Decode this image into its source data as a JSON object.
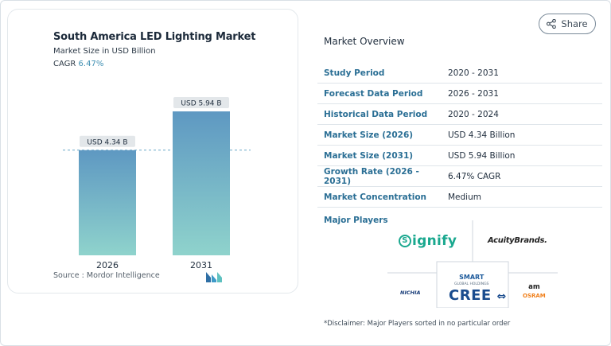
{
  "chart": {
    "title": "South America LED Lighting Market",
    "subtitle": "Market Size in USD Billion",
    "cagr_label": "CAGR",
    "cagr_value": "6.47%",
    "source": "Source : Mordor Intelligence"
  },
  "chart_data": {
    "type": "bar",
    "title": "South America LED Lighting Market",
    "subtitle": "Market Size in USD Billion",
    "categories": [
      "2026",
      "2031"
    ],
    "values": [
      4.34,
      5.94
    ],
    "data_labels": [
      "USD 4.34 B",
      "USD 5.94 B"
    ],
    "ylabel": "",
    "xlabel": "",
    "ylim": [
      0,
      6.5
    ],
    "grid": false,
    "colors": {
      "bar_top": "#5e98c2",
      "bar_bottom": "#8fd3cc",
      "label_bg": "#e3e7ea",
      "reference_line": "#6aa8c8"
    }
  },
  "header": {
    "share_label": "Share"
  },
  "overview": {
    "title": "Market Overview",
    "rows": [
      {
        "key": "Study Period",
        "value": "2020 - 2031"
      },
      {
        "key": "Forecast Data Period",
        "value": "2026 - 2031"
      },
      {
        "key": "Historical Data Period",
        "value": "2020 - 2024"
      },
      {
        "key": "Market Size (2026)",
        "value": "USD 4.34 Billion"
      },
      {
        "key": "Market Size (2031)",
        "value": "USD 5.94 Billion"
      },
      {
        "key": "Growth Rate (2026 - 2031)",
        "value": "6.47% CAGR"
      },
      {
        "key": "Market Concentration",
        "value": "Medium"
      }
    ]
  },
  "players": {
    "title": "Major Players",
    "signify": "ignify",
    "signify_initial": "S",
    "acuity": "AcuityBrands.",
    "smart_line1": "SMART",
    "smart_line2": "GLOBAL HOLDINGS",
    "cree": "CREE",
    "nichia": "NICHIA",
    "ams": "am",
    "osram": "OSRAM",
    "disclaimer": "*Disclaimer: Major Players sorted in no particular order"
  },
  "icons": {
    "share": "share-icon",
    "brand": "mordor-intelligence-logo"
  }
}
